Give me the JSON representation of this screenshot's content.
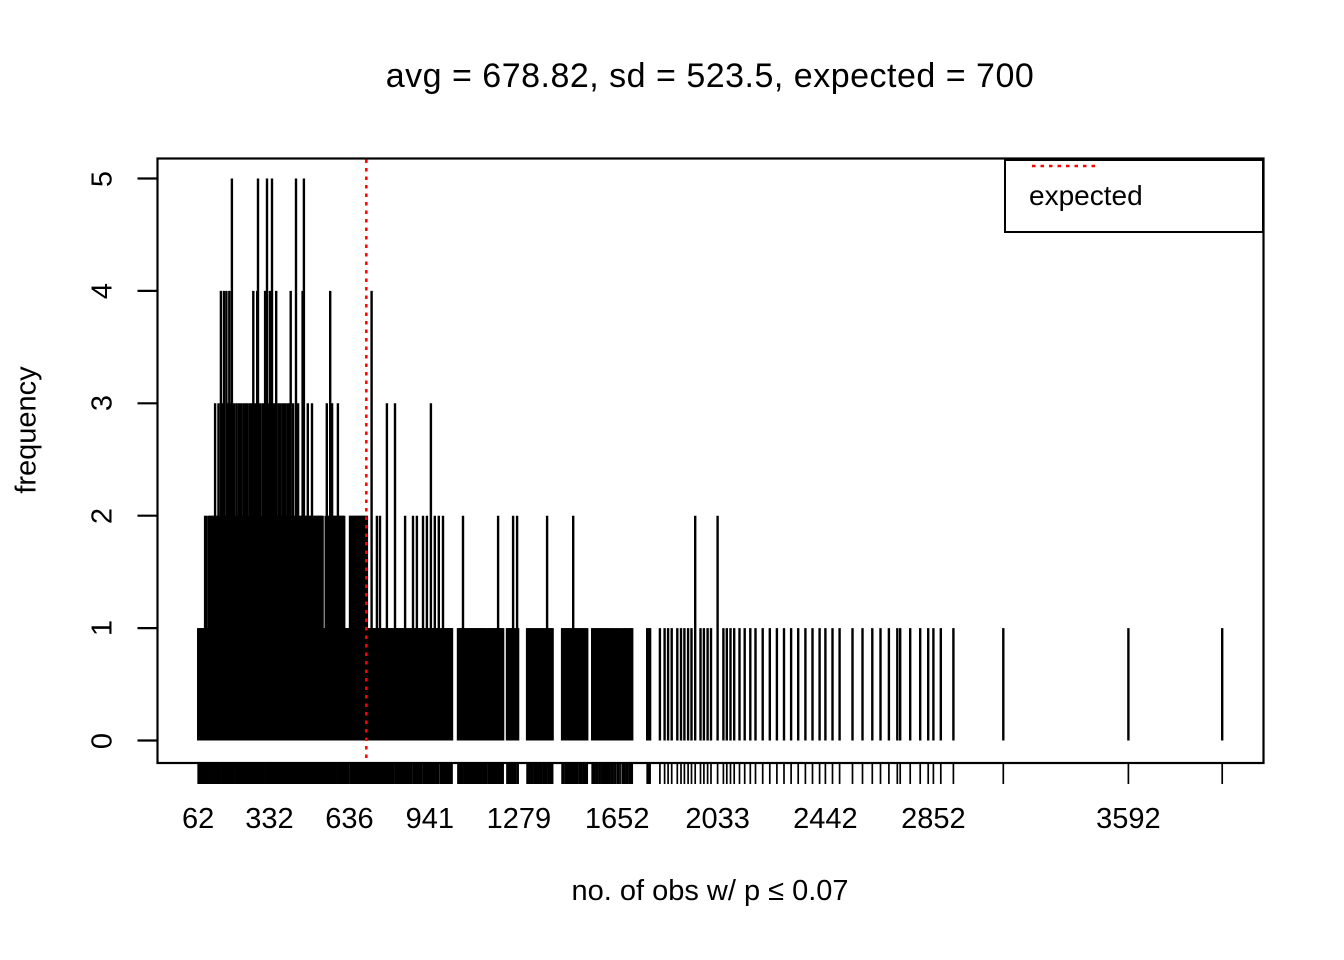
{
  "chart_data": {
    "type": "bar",
    "subtype": "frequency-spike-plot-with-rug",
    "title": "avg = 678.82, sd = 523.5, expected = 700",
    "xlabel": "no. of obs w/ p ≤ 0.07",
    "ylabel": "frequency",
    "stats": {
      "avg": 678.82,
      "sd": 523.5,
      "expected": 700
    },
    "expected_value": 700,
    "x_tick_values": [
      62,
      332,
      636,
      941,
      1279,
      1652,
      2033,
      2442,
      2852,
      3592
    ],
    "y_tick_values": [
      0,
      1,
      2,
      3,
      4,
      5
    ],
    "xlim": [
      62,
      3948
    ],
    "ylim": [
      0,
      5
    ],
    "grid": false,
    "legend": {
      "position": "topright",
      "entries": [
        {
          "label": "expected",
          "line_style": "dotted",
          "color": "#FF0000"
        }
      ]
    },
    "colors": {
      "spikes": "#000000",
      "expected_line": "#FF0000",
      "background": "#FFFFFF",
      "text": "#000000",
      "border": "#000000"
    },
    "points": [
      [
        62,
        1
      ],
      [
        66,
        1
      ],
      [
        71,
        1
      ],
      [
        75,
        1
      ],
      [
        80,
        1
      ],
      [
        84,
        1
      ],
      [
        88,
        2
      ],
      [
        92,
        2
      ],
      [
        96,
        1
      ],
      [
        101,
        2
      ],
      [
        105,
        2
      ],
      [
        109,
        2
      ],
      [
        114,
        2
      ],
      [
        118,
        2
      ],
      [
        122,
        2
      ],
      [
        126,
        3
      ],
      [
        131,
        2
      ],
      [
        135,
        2
      ],
      [
        139,
        3
      ],
      [
        143,
        2
      ],
      [
        148,
        4
      ],
      [
        152,
        2
      ],
      [
        156,
        3
      ],
      [
        160,
        4
      ],
      [
        165,
        2
      ],
      [
        169,
        4
      ],
      [
        173,
        3
      ],
      [
        178,
        2
      ],
      [
        180,
        4
      ],
      [
        185,
        3
      ],
      [
        190,
        5
      ],
      [
        194,
        2
      ],
      [
        198,
        3
      ],
      [
        203,
        2
      ],
      [
        207,
        3
      ],
      [
        211,
        2
      ],
      [
        216,
        3
      ],
      [
        220,
        2
      ],
      [
        224,
        3
      ],
      [
        229,
        2
      ],
      [
        233,
        3
      ],
      [
        237,
        2
      ],
      [
        242,
        3
      ],
      [
        246,
        2
      ],
      [
        250,
        3
      ],
      [
        255,
        2
      ],
      [
        259,
        3
      ],
      [
        263,
        2
      ],
      [
        267,
        3
      ],
      [
        271,
        4
      ],
      [
        276,
        2
      ],
      [
        280,
        3
      ],
      [
        284,
        2
      ],
      [
        286,
        4
      ],
      [
        289,
        5
      ],
      [
        293,
        2
      ],
      [
        297,
        3
      ],
      [
        302,
        2
      ],
      [
        306,
        3
      ],
      [
        310,
        2
      ],
      [
        314,
        3
      ],
      [
        316,
        4
      ],
      [
        321,
        2
      ],
      [
        323,
        5
      ],
      [
        327,
        2
      ],
      [
        331,
        3
      ],
      [
        334,
        4
      ],
      [
        338,
        2
      ],
      [
        342,
        5
      ],
      [
        346,
        2
      ],
      [
        350,
        3
      ],
      [
        355,
        2
      ],
      [
        358,
        4
      ],
      [
        363,
        2
      ],
      [
        367,
        3
      ],
      [
        371,
        2
      ],
      [
        375,
        3
      ],
      [
        380,
        2
      ],
      [
        384,
        3
      ],
      [
        388,
        2
      ],
      [
        392,
        3
      ],
      [
        397,
        2
      ],
      [
        401,
        3
      ],
      [
        405,
        2
      ],
      [
        409,
        3
      ],
      [
        413,
        4
      ],
      [
        418,
        2
      ],
      [
        422,
        3
      ],
      [
        426,
        2
      ],
      [
        430,
        2
      ],
      [
        433,
        5
      ],
      [
        437,
        2
      ],
      [
        441,
        3
      ],
      [
        445,
        2
      ],
      [
        449,
        2
      ],
      [
        454,
        2
      ],
      [
        458,
        4
      ],
      [
        462,
        2
      ],
      [
        463,
        5
      ],
      [
        467,
        2
      ],
      [
        471,
        2
      ],
      [
        475,
        2
      ],
      [
        478,
        3
      ],
      [
        482,
        2
      ],
      [
        486,
        2
      ],
      [
        490,
        2
      ],
      [
        494,
        3
      ],
      [
        498,
        2
      ],
      [
        502,
        2
      ],
      [
        506,
        2
      ],
      [
        510,
        2
      ],
      [
        514,
        2
      ],
      [
        518,
        2
      ],
      [
        522,
        2
      ],
      [
        526,
        2
      ],
      [
        530,
        2
      ],
      [
        534,
        2
      ],
      [
        538,
        1
      ],
      [
        542,
        1
      ],
      [
        546,
        2
      ],
      [
        550,
        3
      ],
      [
        555,
        2
      ],
      [
        559,
        2
      ],
      [
        563,
        4
      ],
      [
        567,
        2
      ],
      [
        570,
        3
      ],
      [
        575,
        2
      ],
      [
        579,
        2
      ],
      [
        583,
        2
      ],
      [
        587,
        2
      ],
      [
        592,
        3
      ],
      [
        596,
        2
      ],
      [
        600,
        2
      ],
      [
        604,
        2
      ],
      [
        608,
        2
      ],
      [
        612,
        2
      ],
      [
        616,
        2
      ],
      [
        620,
        1
      ],
      [
        624,
        1
      ],
      [
        628,
        1
      ],
      [
        632,
        1
      ],
      [
        638,
        2
      ],
      [
        640,
        2
      ],
      [
        645,
        2
      ],
      [
        650,
        2
      ],
      [
        654,
        2
      ],
      [
        658,
        2
      ],
      [
        662,
        2
      ],
      [
        666,
        2
      ],
      [
        670,
        2
      ],
      [
        674,
        2
      ],
      [
        678,
        2
      ],
      [
        682,
        2
      ],
      [
        686,
        2
      ],
      [
        690,
        2
      ],
      [
        694,
        2
      ],
      [
        698,
        2
      ],
      [
        702,
        2
      ],
      [
        706,
        1
      ],
      [
        710,
        1
      ],
      [
        715,
        1
      ],
      [
        720,
        4
      ],
      [
        724,
        1
      ],
      [
        728,
        1
      ],
      [
        732,
        1
      ],
      [
        736,
        1
      ],
      [
        740,
        2
      ],
      [
        745,
        1
      ],
      [
        749,
        1
      ],
      [
        752,
        2
      ],
      [
        757,
        1
      ],
      [
        761,
        1
      ],
      [
        765,
        1
      ],
      [
        769,
        1
      ],
      [
        774,
        1
      ],
      [
        778,
        3
      ],
      [
        782,
        1
      ],
      [
        786,
        1
      ],
      [
        791,
        1
      ],
      [
        795,
        1
      ],
      [
        799,
        1
      ],
      [
        803,
        1
      ],
      [
        809,
        3
      ],
      [
        812,
        1
      ],
      [
        816,
        1
      ],
      [
        820,
        1
      ],
      [
        825,
        1
      ],
      [
        829,
        1
      ],
      [
        833,
        1
      ],
      [
        837,
        1
      ],
      [
        842,
        1
      ],
      [
        847,
        2
      ],
      [
        850,
        1
      ],
      [
        854,
        1
      ],
      [
        858,
        1
      ],
      [
        863,
        1
      ],
      [
        867,
        1
      ],
      [
        871,
        1
      ],
      [
        877,
        2
      ],
      [
        880,
        1
      ],
      [
        884,
        1
      ],
      [
        888,
        1
      ],
      [
        892,
        2
      ],
      [
        897,
        1
      ],
      [
        901,
        1
      ],
      [
        905,
        1
      ],
      [
        909,
        1
      ],
      [
        915,
        2
      ],
      [
        918,
        1
      ],
      [
        922,
        1
      ],
      [
        926,
        1
      ],
      [
        930,
        2
      ],
      [
        935,
        1
      ],
      [
        939,
        1
      ],
      [
        941,
        1
      ],
      [
        945,
        3
      ],
      [
        948,
        1
      ],
      [
        952,
        1
      ],
      [
        956,
        1
      ],
      [
        960,
        2
      ],
      [
        965,
        1
      ],
      [
        969,
        1
      ],
      [
        973,
        1
      ],
      [
        975,
        2
      ],
      [
        982,
        1
      ],
      [
        986,
        1
      ],
      [
        991,
        2
      ],
      [
        995,
        1
      ],
      [
        999,
        1
      ],
      [
        1003,
        1
      ],
      [
        1008,
        1
      ],
      [
        1012,
        1
      ],
      [
        1016,
        1
      ],
      [
        1020,
        1
      ],
      [
        1025,
        1
      ],
      [
        1048,
        1
      ],
      [
        1053,
        1
      ],
      [
        1058,
        1
      ],
      [
        1062,
        1
      ],
      [
        1067,
        2
      ],
      [
        1072,
        1
      ],
      [
        1076,
        1
      ],
      [
        1081,
        1
      ],
      [
        1086,
        1
      ],
      [
        1090,
        1
      ],
      [
        1095,
        1
      ],
      [
        1100,
        1
      ],
      [
        1104,
        1
      ],
      [
        1109,
        1
      ],
      [
        1114,
        1
      ],
      [
        1118,
        1
      ],
      [
        1123,
        1
      ],
      [
        1128,
        1
      ],
      [
        1132,
        1
      ],
      [
        1137,
        1
      ],
      [
        1142,
        1
      ],
      [
        1146,
        1
      ],
      [
        1151,
        1
      ],
      [
        1156,
        1
      ],
      [
        1162,
        1
      ],
      [
        1167,
        1
      ],
      [
        1172,
        1
      ],
      [
        1177,
        1
      ],
      [
        1182,
        1
      ],
      [
        1187,
        1
      ],
      [
        1192,
        1
      ],
      [
        1196,
        1
      ],
      [
        1200,
        2
      ],
      [
        1205,
        1
      ],
      [
        1210,
        1
      ],
      [
        1215,
        1
      ],
      [
        1219,
        1
      ],
      [
        1234,
        1
      ],
      [
        1239,
        1
      ],
      [
        1244,
        1
      ],
      [
        1249,
        1
      ],
      [
        1253,
        1
      ],
      [
        1257,
        2
      ],
      [
        1262,
        1
      ],
      [
        1266,
        1
      ],
      [
        1272,
        2
      ],
      [
        1276,
        1
      ],
      [
        1310,
        1
      ],
      [
        1315,
        1
      ],
      [
        1320,
        1
      ],
      [
        1325,
        1
      ],
      [
        1330,
        1
      ],
      [
        1336,
        1
      ],
      [
        1341,
        1
      ],
      [
        1346,
        1
      ],
      [
        1351,
        1
      ],
      [
        1356,
        1
      ],
      [
        1361,
        1
      ],
      [
        1366,
        1
      ],
      [
        1372,
        1
      ],
      [
        1377,
        1
      ],
      [
        1382,
        1
      ],
      [
        1386,
        2
      ],
      [
        1392,
        1
      ],
      [
        1397,
        1
      ],
      [
        1402,
        1
      ],
      [
        1407,
        1
      ],
      [
        1443,
        1
      ],
      [
        1448,
        1
      ],
      [
        1454,
        1
      ],
      [
        1459,
        1
      ],
      [
        1464,
        1
      ],
      [
        1470,
        1
      ],
      [
        1475,
        1
      ],
      [
        1480,
        1
      ],
      [
        1485,
        2
      ],
      [
        1491,
        1
      ],
      [
        1496,
        1
      ],
      [
        1501,
        1
      ],
      [
        1507,
        1
      ],
      [
        1512,
        1
      ],
      [
        1517,
        1
      ],
      [
        1523,
        1
      ],
      [
        1528,
        1
      ],
      [
        1533,
        1
      ],
      [
        1538,
        1
      ],
      [
        1557,
        1
      ],
      [
        1563,
        1
      ],
      [
        1568,
        1
      ],
      [
        1574,
        1
      ],
      [
        1579,
        1
      ],
      [
        1585,
        1
      ],
      [
        1590,
        1
      ],
      [
        1596,
        1
      ],
      [
        1601,
        1
      ],
      [
        1607,
        1
      ],
      [
        1612,
        1
      ],
      [
        1618,
        1
      ],
      [
        1623,
        1
      ],
      [
        1629,
        1
      ],
      [
        1634,
        1
      ],
      [
        1640,
        1
      ],
      [
        1645,
        1
      ],
      [
        1652,
        1
      ],
      [
        1657,
        1
      ],
      [
        1663,
        1
      ],
      [
        1671,
        1
      ],
      [
        1677,
        1
      ],
      [
        1682,
        1
      ],
      [
        1688,
        1
      ],
      [
        1693,
        1
      ],
      [
        1699,
        1
      ],
      [
        1704,
        1
      ],
      [
        1709,
        1
      ],
      [
        1766,
        1
      ],
      [
        1772,
        1
      ],
      [
        1777,
        1
      ],
      [
        1814,
        1
      ],
      [
        1832,
        1
      ],
      [
        1845,
        1
      ],
      [
        1859,
        1
      ],
      [
        1880,
        1
      ],
      [
        1894,
        1
      ],
      [
        1907,
        1
      ],
      [
        1921,
        1
      ],
      [
        1934,
        1
      ],
      [
        1948,
        2
      ],
      [
        1968,
        1
      ],
      [
        1981,
        1
      ],
      [
        1995,
        1
      ],
      [
        2008,
        1
      ],
      [
        2033,
        2
      ],
      [
        2055,
        1
      ],
      [
        2068,
        1
      ],
      [
        2082,
        1
      ],
      [
        2096,
        1
      ],
      [
        2116,
        1
      ],
      [
        2136,
        1
      ],
      [
        2157,
        1
      ],
      [
        2177,
        1
      ],
      [
        2204,
        1
      ],
      [
        2231,
        1
      ],
      [
        2258,
        1
      ],
      [
        2285,
        1
      ],
      [
        2312,
        1
      ],
      [
        2339,
        1
      ],
      [
        2366,
        1
      ],
      [
        2393,
        1
      ],
      [
        2420,
        1
      ],
      [
        2442,
        1
      ],
      [
        2469,
        1
      ],
      [
        2496,
        1
      ],
      [
        2545,
        1
      ],
      [
        2583,
        1
      ],
      [
        2620,
        1
      ],
      [
        2651,
        1
      ],
      [
        2683,
        1
      ],
      [
        2715,
        1
      ],
      [
        2726,
        1
      ],
      [
        2764,
        1
      ],
      [
        2802,
        1
      ],
      [
        2832,
        1
      ],
      [
        2852,
        1
      ],
      [
        2880,
        1
      ],
      [
        2928,
        1
      ],
      [
        3117,
        1
      ],
      [
        3592,
        1
      ],
      [
        3948,
        1
      ]
    ]
  }
}
